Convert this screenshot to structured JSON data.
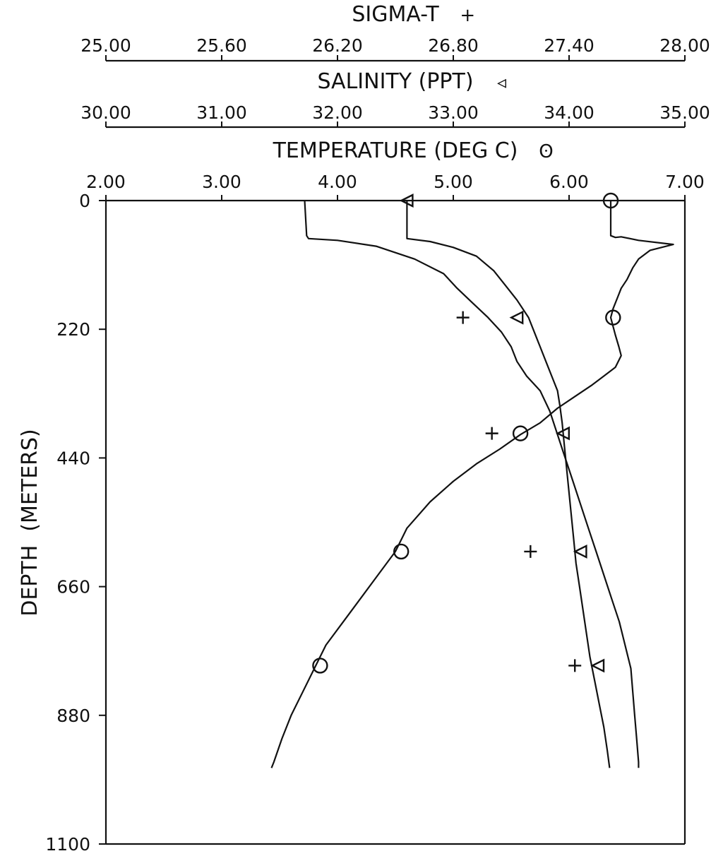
{
  "chart_data": {
    "type": "line",
    "orientation": "profile",
    "ylabel": "DEPTH  (METERS)",
    "ylim": [
      0,
      1100
    ],
    "y_inverted": true,
    "y_ticks": [
      "0",
      "220",
      "440",
      "660",
      "880",
      "1100"
    ],
    "y_tick_values": [
      0,
      220,
      440,
      660,
      880,
      1100
    ],
    "x_axes": [
      {
        "id": "sigma",
        "title": "SIGMA-T",
        "symbol": "+",
        "range": [
          25.0,
          28.0
        ],
        "ticks": [
          "25.00",
          "25.60",
          "26.20",
          "26.80",
          "27.40",
          "28.00"
        ],
        "tick_values": [
          25.0,
          25.6,
          26.2,
          26.8,
          27.4,
          28.0
        ]
      },
      {
        "id": "salinity",
        "title": "SALINITY (PPT)",
        "symbol": "◃",
        "range": [
          30.0,
          35.0
        ],
        "ticks": [
          "30.00",
          "31.00",
          "32.00",
          "33.00",
          "34.00",
          "35.00"
        ],
        "tick_values": [
          30.0,
          31.0,
          32.0,
          33.0,
          34.0,
          35.0
        ]
      },
      {
        "id": "temperature",
        "title": "TEMPERATURE (DEG C)",
        "symbol": "ʘ",
        "range": [
          2.0,
          7.0
        ],
        "ticks": [
          "2.00",
          "3.00",
          "4.00",
          "5.00",
          "6.00",
          "7.00"
        ],
        "tick_values": [
          2.0,
          3.0,
          4.0,
          5.0,
          6.0,
          7.0
        ]
      }
    ],
    "series": [
      {
        "name": "SIGMA-T",
        "axis": "sigma",
        "marker": "plus",
        "points": [
          [
            26.03,
            0
          ],
          [
            26.04,
            60
          ],
          [
            26.05,
            65
          ],
          [
            26.2,
            68
          ],
          [
            26.4,
            78
          ],
          [
            26.6,
            100
          ],
          [
            26.75,
            125
          ],
          [
            26.82,
            150
          ],
          [
            26.9,
            175
          ],
          [
            26.98,
            200
          ],
          [
            27.05,
            225
          ],
          [
            27.1,
            250
          ],
          [
            27.13,
            275
          ],
          [
            27.18,
            300
          ],
          [
            27.25,
            325
          ],
          [
            27.3,
            360
          ],
          [
            27.34,
            400
          ],
          [
            27.38,
            440
          ],
          [
            27.42,
            480
          ],
          [
            27.46,
            520
          ],
          [
            27.5,
            560
          ],
          [
            27.54,
            600
          ],
          [
            27.58,
            640
          ],
          [
            27.62,
            680
          ],
          [
            27.66,
            720
          ],
          [
            27.69,
            760
          ],
          [
            27.72,
            800
          ],
          [
            27.73,
            840
          ],
          [
            27.74,
            880
          ],
          [
            27.75,
            920
          ],
          [
            27.76,
            960
          ],
          [
            27.76,
            970
          ]
        ],
        "markers": [
          [
            26.85,
            200
          ],
          [
            27.0,
            398
          ],
          [
            27.2,
            600
          ],
          [
            27.43,
            795
          ]
        ]
      },
      {
        "name": "SALINITY (PPT)",
        "axis": "salinity",
        "marker": "triangle",
        "points": [
          [
            32.6,
            0
          ],
          [
            32.6,
            65
          ],
          [
            32.8,
            70
          ],
          [
            33.0,
            80
          ],
          [
            33.2,
            95
          ],
          [
            33.35,
            120
          ],
          [
            33.45,
            145
          ],
          [
            33.55,
            170
          ],
          [
            33.65,
            200
          ],
          [
            33.7,
            225
          ],
          [
            33.75,
            250
          ],
          [
            33.8,
            275
          ],
          [
            33.85,
            300
          ],
          [
            33.9,
            325
          ],
          [
            33.92,
            350
          ],
          [
            33.94,
            380
          ],
          [
            33.96,
            420
          ],
          [
            33.98,
            460
          ],
          [
            34.0,
            500
          ],
          [
            34.02,
            540
          ],
          [
            34.04,
            580
          ],
          [
            34.06,
            620
          ],
          [
            34.09,
            660
          ],
          [
            34.12,
            700
          ],
          [
            34.15,
            740
          ],
          [
            34.18,
            780
          ],
          [
            34.22,
            820
          ],
          [
            34.26,
            860
          ],
          [
            34.3,
            900
          ],
          [
            34.33,
            940
          ],
          [
            34.35,
            970
          ]
        ],
        "markers": [
          [
            32.6,
            0
          ],
          [
            33.55,
            200
          ],
          [
            33.95,
            398
          ],
          [
            34.1,
            600
          ],
          [
            34.25,
            795
          ]
        ]
      },
      {
        "name": "TEMPERATURE (DEG C)",
        "axis": "temperature",
        "marker": "circle",
        "points": [
          [
            6.36,
            0
          ],
          [
            6.36,
            60
          ],
          [
            6.4,
            63
          ],
          [
            6.45,
            62
          ],
          [
            6.6,
            68
          ],
          [
            6.9,
            75
          ],
          [
            6.7,
            85
          ],
          [
            6.6,
            100
          ],
          [
            6.55,
            115
          ],
          [
            6.5,
            135
          ],
          [
            6.45,
            150
          ],
          [
            6.42,
            165
          ],
          [
            6.38,
            185
          ],
          [
            6.36,
            200
          ],
          [
            6.38,
            215
          ],
          [
            6.4,
            230
          ],
          [
            6.43,
            250
          ],
          [
            6.45,
            265
          ],
          [
            6.4,
            285
          ],
          [
            6.3,
            300
          ],
          [
            6.2,
            315
          ],
          [
            6.05,
            335
          ],
          [
            5.9,
            355
          ],
          [
            5.75,
            380
          ],
          [
            5.58,
            400
          ],
          [
            5.4,
            425
          ],
          [
            5.2,
            450
          ],
          [
            5.0,
            480
          ],
          [
            4.8,
            515
          ],
          [
            4.6,
            560
          ],
          [
            4.5,
            600
          ],
          [
            4.35,
            640
          ],
          [
            4.2,
            680
          ],
          [
            4.05,
            720
          ],
          [
            3.9,
            760
          ],
          [
            3.8,
            800
          ],
          [
            3.7,
            840
          ],
          [
            3.6,
            880
          ],
          [
            3.52,
            920
          ],
          [
            3.45,
            960
          ],
          [
            3.43,
            970
          ]
        ],
        "markers": [
          [
            6.36,
            0
          ],
          [
            6.38,
            200
          ],
          [
            5.58,
            398
          ],
          [
            4.55,
            600
          ],
          [
            3.85,
            795
          ]
        ]
      }
    ]
  }
}
